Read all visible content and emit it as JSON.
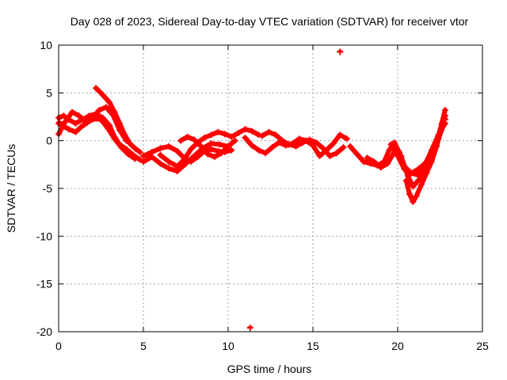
{
  "chart_data": {
    "type": "scatter",
    "title": "Day 028 of 2023, Sidereal Day-to-day VTEC variation (SDTVAR) for receiver vtor",
    "xlabel": "GPS time / hours",
    "ylabel": "SDTVAR / TECUs",
    "xlim": [
      0,
      25
    ],
    "ylim": [
      -20,
      10
    ],
    "x_ticks": [
      0,
      5,
      10,
      15,
      20,
      25
    ],
    "y_ticks": [
      -20,
      -15,
      -10,
      -5,
      0,
      5,
      10
    ],
    "x_tick_labels": [
      "0",
      "5",
      "10",
      "15",
      "20",
      "25"
    ],
    "y_tick_labels": [
      "-20",
      "-15",
      "-10",
      "-5",
      "0",
      "5",
      "10"
    ],
    "grid": true,
    "marker": "+",
    "series": [
      {
        "name": "SDTVAR",
        "color": "#ff0000",
        "tracks": [
          [
            [
              0.0,
              2.4
            ],
            [
              0.3,
              2.6
            ],
            [
              0.6,
              2.2
            ],
            [
              1.0,
              1.8
            ],
            [
              1.4,
              2.2
            ],
            [
              1.8,
              2.6
            ],
            [
              2.2,
              2.8
            ],
            [
              2.6,
              2.4
            ],
            [
              3.0,
              1.6
            ],
            [
              3.3,
              0.4
            ],
            [
              3.6,
              -0.4
            ],
            [
              4.0,
              -0.9
            ],
            [
              4.4,
              -1.5
            ],
            [
              4.8,
              -2.0
            ]
          ],
          [
            [
              0.0,
              1.8
            ],
            [
              0.3,
              1.5
            ],
            [
              0.6,
              1.2
            ],
            [
              1.0,
              0.9
            ],
            [
              1.3,
              1.4
            ],
            [
              1.7,
              1.9
            ],
            [
              2.1,
              2.3
            ],
            [
              2.5,
              2.2
            ],
            [
              2.9,
              1.3
            ],
            [
              3.3,
              0.2
            ],
            [
              3.7,
              -0.7
            ],
            [
              4.1,
              -1.4
            ],
            [
              4.5,
              -1.9
            ]
          ],
          [
            [
              2.2,
              5.5
            ],
            [
              2.6,
              4.8
            ],
            [
              3.0,
              4.0
            ],
            [
              3.3,
              3.0
            ],
            [
              3.6,
              1.8
            ],
            [
              3.9,
              0.6
            ],
            [
              4.2,
              -0.3
            ],
            [
              4.5,
              -0.8
            ],
            [
              4.8,
              -1.2
            ]
          ],
          [
            [
              0.0,
              0.7
            ],
            [
              0.4,
              2.0
            ],
            [
              0.8,
              3.0
            ],
            [
              1.2,
              2.6
            ],
            [
              1.6,
              2.0
            ],
            [
              2.0,
              2.4
            ],
            [
              2.4,
              3.2
            ],
            [
              2.8,
              3.5
            ],
            [
              3.2,
              2.7
            ],
            [
              3.6,
              1.1
            ],
            [
              4.0,
              0.0
            ]
          ],
          [
            [
              5.0,
              -1.6
            ],
            [
              5.5,
              -1.2
            ],
            [
              6.0,
              -0.8
            ],
            [
              6.5,
              -0.6
            ],
            [
              7.0,
              -1.1
            ],
            [
              7.4,
              -1.8
            ],
            [
              7.8,
              -2.2
            ],
            [
              8.2,
              -1.7
            ],
            [
              8.6,
              -1.1
            ],
            [
              9.0,
              -0.9
            ],
            [
              9.4,
              -1.1
            ],
            [
              9.8,
              -1.2
            ],
            [
              10.2,
              -1.0
            ]
          ],
          [
            [
              5.0,
              -2.2
            ],
            [
              5.5,
              -1.7
            ],
            [
              6.0,
              -2.4
            ],
            [
              6.5,
              -2.9
            ],
            [
              7.0,
              -3.2
            ],
            [
              7.5,
              -2.4
            ],
            [
              8.0,
              -1.6
            ],
            [
              8.5,
              -0.8
            ],
            [
              9.0,
              -0.3
            ],
            [
              9.5,
              -0.4
            ],
            [
              10.0,
              -0.6
            ]
          ],
          [
            [
              6.0,
              -1.5
            ],
            [
              6.5,
              -2.2
            ],
            [
              7.0,
              -2.7
            ],
            [
              7.4,
              -2.0
            ],
            [
              7.8,
              -0.9
            ],
            [
              8.2,
              -0.2
            ],
            [
              8.6,
              0.3
            ],
            [
              9.0,
              0.6
            ],
            [
              9.4,
              0.9
            ],
            [
              9.8,
              0.7
            ],
            [
              10.2,
              0.4
            ],
            [
              10.6,
              0.8
            ],
            [
              11.0,
              1.2
            ],
            [
              11.4,
              1.0
            ],
            [
              11.8,
              0.6
            ]
          ],
          [
            [
              7.2,
              0.0
            ],
            [
              7.6,
              0.4
            ],
            [
              8.0,
              0.1
            ],
            [
              8.4,
              -0.6
            ],
            [
              8.8,
              -1.4
            ],
            [
              9.2,
              -1.7
            ],
            [
              9.6,
              -1.3
            ],
            [
              10.0,
              -0.6
            ],
            [
              10.4,
              0.0
            ]
          ],
          [
            [
              11.0,
              0.3
            ],
            [
              11.4,
              -0.5
            ],
            [
              11.8,
              -1.0
            ],
            [
              12.2,
              -1.3
            ],
            [
              12.6,
              -0.7
            ],
            [
              13.0,
              -0.2
            ],
            [
              13.4,
              -0.5
            ],
            [
              13.8,
              -0.3
            ],
            [
              14.2,
              0.2
            ],
            [
              14.6,
              0.0
            ],
            [
              15.0,
              -0.5
            ],
            [
              15.4,
              -1.6
            ],
            [
              15.8,
              -1.0
            ],
            [
              16.2,
              -0.3
            ],
            [
              16.6,
              0.6
            ],
            [
              17.0,
              0.2
            ]
          ],
          [
            [
              12.0,
              0.5
            ],
            [
              12.4,
              0.9
            ],
            [
              12.8,
              0.6
            ],
            [
              13.2,
              0.0
            ],
            [
              13.6,
              -0.4
            ],
            [
              14.0,
              -0.6
            ],
            [
              14.4,
              -0.2
            ],
            [
              14.8,
              0.1
            ],
            [
              15.2,
              -0.2
            ],
            [
              15.6,
              -0.8
            ],
            [
              16.0,
              -1.6
            ],
            [
              16.4,
              -1.3
            ],
            [
              16.8,
              -0.7
            ]
          ],
          [
            [
              17.2,
              -0.6
            ],
            [
              17.6,
              -1.4
            ],
            [
              18.0,
              -2.2
            ],
            [
              18.4,
              -2.4
            ],
            [
              18.8,
              -2.6
            ],
            [
              19.2,
              -2.2
            ],
            [
              19.5,
              -1.0
            ],
            [
              19.8,
              -0.2
            ],
            [
              20.1,
              -1.2
            ],
            [
              20.4,
              -2.7
            ],
            [
              20.8,
              -3.4
            ],
            [
              21.2,
              -3.0
            ],
            [
              21.6,
              -2.4
            ],
            [
              22.0,
              -1.4
            ],
            [
              22.4,
              0.2
            ],
            [
              22.7,
              1.6
            ]
          ],
          [
            [
              18.2,
              -1.8
            ],
            [
              18.6,
              -2.2
            ],
            [
              19.0,
              -2.8
            ],
            [
              19.4,
              -2.4
            ],
            [
              19.8,
              -1.2
            ],
            [
              20.2,
              -1.6
            ],
            [
              20.6,
              -3.7
            ],
            [
              20.9,
              -4.8
            ],
            [
              21.2,
              -4.2
            ],
            [
              21.6,
              -3.4
            ],
            [
              22.0,
              -2.0
            ],
            [
              22.3,
              -0.2
            ],
            [
              22.6,
              1.8
            ],
            [
              22.8,
              3.2
            ]
          ],
          [
            [
              20.5,
              -4.2
            ],
            [
              20.7,
              -5.6
            ],
            [
              20.9,
              -6.4
            ],
            [
              21.1,
              -5.8
            ],
            [
              21.4,
              -4.6
            ],
            [
              21.7,
              -3.4
            ],
            [
              22.0,
              -2.2
            ],
            [
              22.3,
              -0.6
            ],
            [
              22.6,
              1.4
            ],
            [
              22.8,
              2.6
            ]
          ],
          [
            [
              19.6,
              -0.4
            ],
            [
              20.0,
              -1.6
            ],
            [
              20.4,
              -3.0
            ],
            [
              20.8,
              -3.4
            ],
            [
              21.2,
              -3.6
            ],
            [
              21.6,
              -2.6
            ],
            [
              22.0,
              -1.0
            ],
            [
              22.4,
              0.6
            ],
            [
              22.8,
              1.8
            ]
          ]
        ],
        "points": [
          [
            16.6,
            9.3
          ],
          [
            11.3,
            -19.6
          ],
          [
            0.05,
            1.9
          ],
          [
            22.8,
            2.2
          ]
        ]
      }
    ]
  }
}
